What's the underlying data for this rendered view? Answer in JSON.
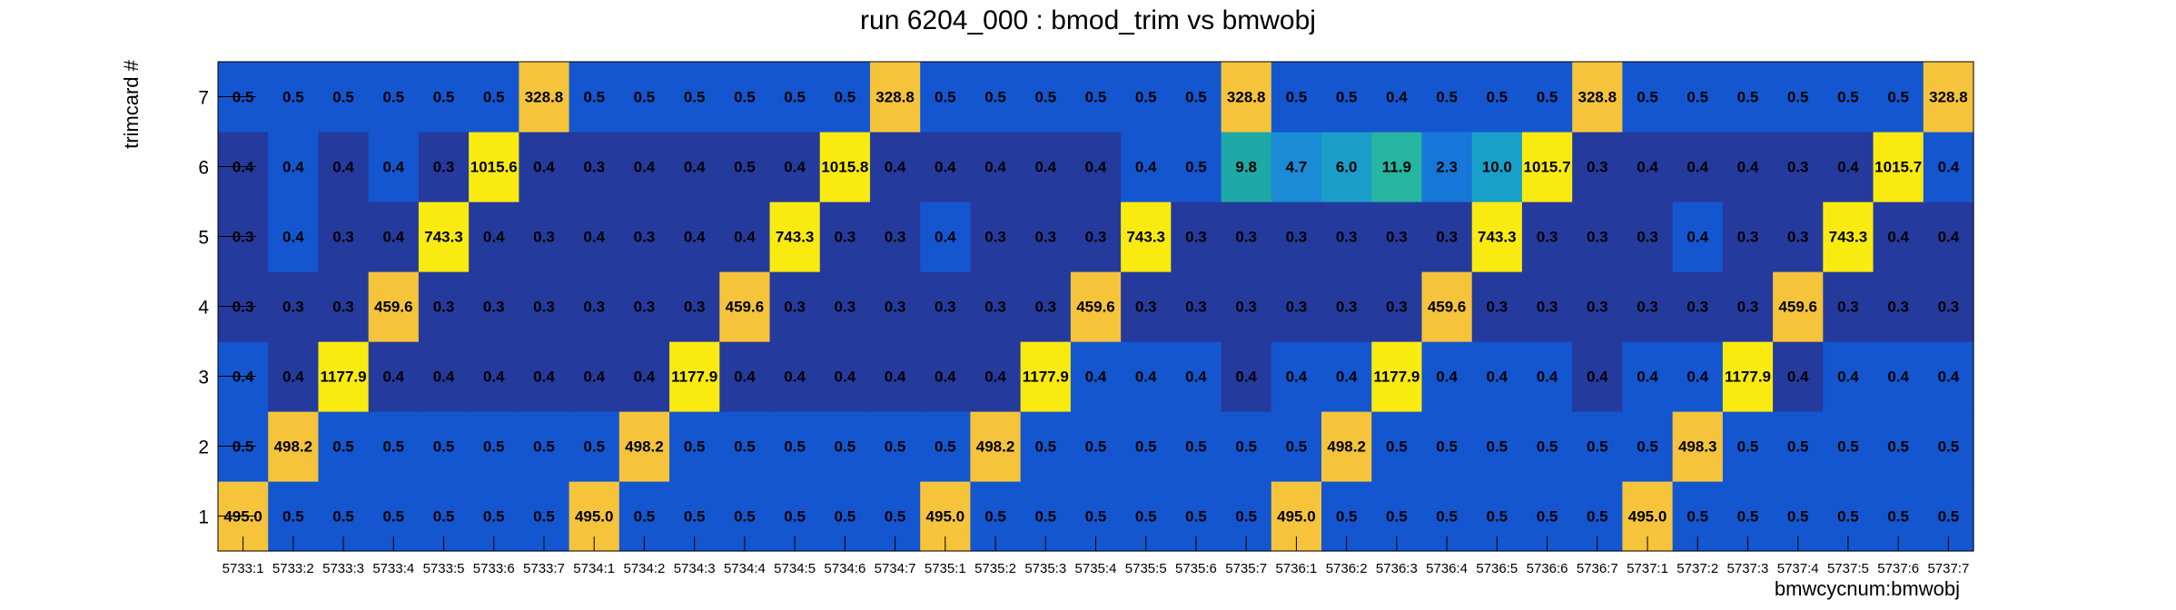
{
  "chart_data": {
    "type": "heatmap",
    "title": "run 6204_000 : bmod_trim vs bmwobj",
    "xlabel": "bmwcycnum:bmwobj",
    "ylabel": "trimcard #",
    "x_categories": [
      "5733:1",
      "5733:2",
      "5733:3",
      "5733:4",
      "5733:5",
      "5733:6",
      "5733:7",
      "5734:1",
      "5734:2",
      "5734:3",
      "5734:4",
      "5734:5",
      "5734:6",
      "5734:7",
      "5735:1",
      "5735:2",
      "5735:3",
      "5735:4",
      "5735:5",
      "5735:6",
      "5735:7",
      "5736:1",
      "5736:2",
      "5736:3",
      "5736:4",
      "5736:5",
      "5736:6",
      "5736:7",
      "5737:1",
      "5737:2",
      "5737:3",
      "5737:4",
      "5737:5",
      "5737:6",
      "5737:7"
    ],
    "y_categories": [
      "1",
      "2",
      "3",
      "4",
      "5",
      "6",
      "7"
    ],
    "values": [
      [
        "495.0",
        "0.5",
        "0.5",
        "0.5",
        "0.5",
        "0.5",
        "0.5",
        "495.0",
        "0.5",
        "0.5",
        "0.5",
        "0.5",
        "0.5",
        "0.5",
        "495.0",
        "0.5",
        "0.5",
        "0.5",
        "0.5",
        "0.5",
        "0.5",
        "495.0",
        "0.5",
        "0.5",
        "0.5",
        "0.5",
        "0.5",
        "0.5",
        "495.0",
        "0.5",
        "0.5",
        "0.5",
        "0.5",
        "0.5",
        "0.5"
      ],
      [
        "0.5",
        "498.2",
        "0.5",
        "0.5",
        "0.5",
        "0.5",
        "0.5",
        "0.5",
        "498.2",
        "0.5",
        "0.5",
        "0.5",
        "0.5",
        "0.5",
        "0.5",
        "498.2",
        "0.5",
        "0.5",
        "0.5",
        "0.5",
        "0.5",
        "0.5",
        "498.2",
        "0.5",
        "0.5",
        "0.5",
        "0.5",
        "0.5",
        "0.5",
        "498.3",
        "0.5",
        "0.5",
        "0.5",
        "0.5",
        "0.5"
      ],
      [
        "0.4",
        "0.4",
        "1177.9",
        "0.4",
        "0.4",
        "0.4",
        "0.4",
        "0.4",
        "0.4",
        "1177.9",
        "0.4",
        "0.4",
        "0.4",
        "0.4",
        "0.4",
        "0.4",
        "1177.9",
        "0.4",
        "0.4",
        "0.4",
        "0.4",
        "0.4",
        "0.4",
        "1177.9",
        "0.4",
        "0.4",
        "0.4",
        "0.4",
        "0.4",
        "0.4",
        "1177.9",
        "0.4",
        "0.4",
        "0.4",
        "0.4"
      ],
      [
        "0.3",
        "0.3",
        "0.3",
        "459.6",
        "0.3",
        "0.3",
        "0.3",
        "0.3",
        "0.3",
        "0.3",
        "459.6",
        "0.3",
        "0.3",
        "0.3",
        "0.3",
        "0.3",
        "0.3",
        "459.6",
        "0.3",
        "0.3",
        "0.3",
        "0.3",
        "0.3",
        "0.3",
        "459.6",
        "0.3",
        "0.3",
        "0.3",
        "0.3",
        "0.3",
        "0.3",
        "459.6",
        "0.3",
        "0.3",
        "0.3"
      ],
      [
        "0.3",
        "0.4",
        "0.3",
        "0.4",
        "743.3",
        "0.4",
        "0.3",
        "0.4",
        "0.3",
        "0.4",
        "0.4",
        "743.3",
        "0.3",
        "0.3",
        "0.4",
        "0.3",
        "0.3",
        "0.3",
        "743.3",
        "0.3",
        "0.3",
        "0.3",
        "0.3",
        "0.3",
        "0.3",
        "743.3",
        "0.3",
        "0.3",
        "0.3",
        "0.4",
        "0.3",
        "0.3",
        "743.3",
        "0.4",
        "0.4"
      ],
      [
        "0.4",
        "0.4",
        "0.4",
        "0.4",
        "0.3",
        "1015.6",
        "0.4",
        "0.3",
        "0.4",
        "0.4",
        "0.5",
        "0.4",
        "1015.8",
        "0.4",
        "0.4",
        "0.4",
        "0.4",
        "0.4",
        "0.4",
        "0.5",
        "9.8",
        "4.7",
        "6.0",
        "11.9",
        "2.3",
        "10.0",
        "1015.7",
        "0.3",
        "0.4",
        "0.4",
        "0.4",
        "0.3",
        "0.4",
        "1015.7",
        "0.4"
      ],
      [
        "0.5",
        "0.5",
        "0.5",
        "0.5",
        "0.5",
        "0.5",
        "328.8",
        "0.5",
        "0.5",
        "0.5",
        "0.5",
        "0.5",
        "0.5",
        "328.8",
        "0.5",
        "0.5",
        "0.5",
        "0.5",
        "0.5",
        "0.5",
        "328.8",
        "0.5",
        "0.5",
        "0.4",
        "0.5",
        "0.5",
        "0.5",
        "328.8",
        "0.5",
        "0.5",
        "0.5",
        "0.5",
        "0.5",
        "0.5",
        "328.8"
      ]
    ],
    "cell_colors": [
      [
        "#f5c43a",
        "#1456d0",
        "#1456d0",
        "#1456d0",
        "#1456d0",
        "#1456d0",
        "#1456d0",
        "#f5c43a",
        "#1456d0",
        "#1456d0",
        "#1456d0",
        "#1456d0",
        "#1456d0",
        "#1456d0",
        "#f5c43a",
        "#1456d0",
        "#1456d0",
        "#1456d0",
        "#1456d0",
        "#1456d0",
        "#1456d0",
        "#f5c43a",
        "#1456d0",
        "#1456d0",
        "#1456d0",
        "#1456d0",
        "#1456d0",
        "#1456d0",
        "#f5c43a",
        "#1456d0",
        "#1456d0",
        "#1456d0",
        "#1456d0",
        "#1456d0",
        "#1456d0"
      ],
      [
        "#1456d0",
        "#f5c43a",
        "#1456d0",
        "#1456d0",
        "#1456d0",
        "#1456d0",
        "#1456d0",
        "#1456d0",
        "#f5c43a",
        "#1456d0",
        "#1456d0",
        "#1456d0",
        "#1456d0",
        "#1456d0",
        "#1456d0",
        "#f5c43a",
        "#1456d0",
        "#1456d0",
        "#1456d0",
        "#1456d0",
        "#1456d0",
        "#1456d0",
        "#f5c43a",
        "#1456d0",
        "#1456d0",
        "#1456d0",
        "#1456d0",
        "#1456d0",
        "#1456d0",
        "#f5c43a",
        "#1456d0",
        "#1456d0",
        "#1456d0",
        "#1456d0",
        "#1456d0"
      ],
      [
        "#1456d0",
        "#253a9d",
        "#f9eb0f",
        "#253a9d",
        "#253a9d",
        "#253a9d",
        "#253a9d",
        "#253a9d",
        "#253a9d",
        "#f9eb0f",
        "#253a9d",
        "#253a9d",
        "#253a9d",
        "#253a9d",
        "#253a9d",
        "#253a9d",
        "#f9eb0f",
        "#1456d0",
        "#1456d0",
        "#1456d0",
        "#253a9d",
        "#1456d0",
        "#1456d0",
        "#f9eb0f",
        "#1456d0",
        "#1456d0",
        "#1456d0",
        "#253a9d",
        "#1456d0",
        "#1456d0",
        "#f9eb0f",
        "#253a9d",
        "#1456d0",
        "#1456d0",
        "#1456d0"
      ],
      [
        "#253a9d",
        "#253a9d",
        "#253a9d",
        "#f5c43a",
        "#253a9d",
        "#253a9d",
        "#253a9d",
        "#253a9d",
        "#253a9d",
        "#253a9d",
        "#f5c43a",
        "#253a9d",
        "#253a9d",
        "#253a9d",
        "#253a9d",
        "#253a9d",
        "#253a9d",
        "#f5c43a",
        "#253a9d",
        "#253a9d",
        "#253a9d",
        "#253a9d",
        "#253a9d",
        "#253a9d",
        "#f5c43a",
        "#253a9d",
        "#253a9d",
        "#253a9d",
        "#253a9d",
        "#253a9d",
        "#253a9d",
        "#f5c43a",
        "#253a9d",
        "#253a9d",
        "#253a9d"
      ],
      [
        "#253a9d",
        "#1456d0",
        "#253a9d",
        "#253a9d",
        "#f9eb0f",
        "#253a9d",
        "#253a9d",
        "#253a9d",
        "#253a9d",
        "#253a9d",
        "#253a9d",
        "#f9eb0f",
        "#253a9d",
        "#253a9d",
        "#1456d0",
        "#253a9d",
        "#253a9d",
        "#253a9d",
        "#f9eb0f",
        "#253a9d",
        "#253a9d",
        "#253a9d",
        "#253a9d",
        "#253a9d",
        "#253a9d",
        "#f9eb0f",
        "#253a9d",
        "#253a9d",
        "#253a9d",
        "#1456d0",
        "#253a9d",
        "#253a9d",
        "#f9eb0f",
        "#253a9d",
        "#253a9d"
      ],
      [
        "#253a9d",
        "#1456d0",
        "#253a9d",
        "#1456d0",
        "#253a9d",
        "#f9eb0f",
        "#253a9d",
        "#253a9d",
        "#253a9d",
        "#253a9d",
        "#253a9d",
        "#253a9d",
        "#f9eb0f",
        "#253a9d",
        "#253a9d",
        "#253a9d",
        "#253a9d",
        "#253a9d",
        "#1456d0",
        "#1456d0",
        "#1ea8a6",
        "#1a8bd4",
        "#1a9ec9",
        "#25b5a0",
        "#1677d8",
        "#18a0c8",
        "#f9eb0f",
        "#253a9d",
        "#253a9d",
        "#253a9d",
        "#253a9d",
        "#253a9d",
        "#253a9d",
        "#f9eb0f",
        "#1456d0"
      ],
      [
        "#1456d0",
        "#1456d0",
        "#1456d0",
        "#1456d0",
        "#1456d0",
        "#1456d0",
        "#f5c43a",
        "#1456d0",
        "#1456d0",
        "#1456d0",
        "#1456d0",
        "#1456d0",
        "#1456d0",
        "#f5c43a",
        "#1456d0",
        "#1456d0",
        "#1456d0",
        "#1456d0",
        "#1456d0",
        "#1456d0",
        "#f5c43a",
        "#1456d0",
        "#1456d0",
        "#1456d0",
        "#1456d0",
        "#1456d0",
        "#1456d0",
        "#f5c43a",
        "#1456d0",
        "#1456d0",
        "#1456d0",
        "#1456d0",
        "#1456d0",
        "#1456d0",
        "#f5c43a"
      ]
    ]
  }
}
